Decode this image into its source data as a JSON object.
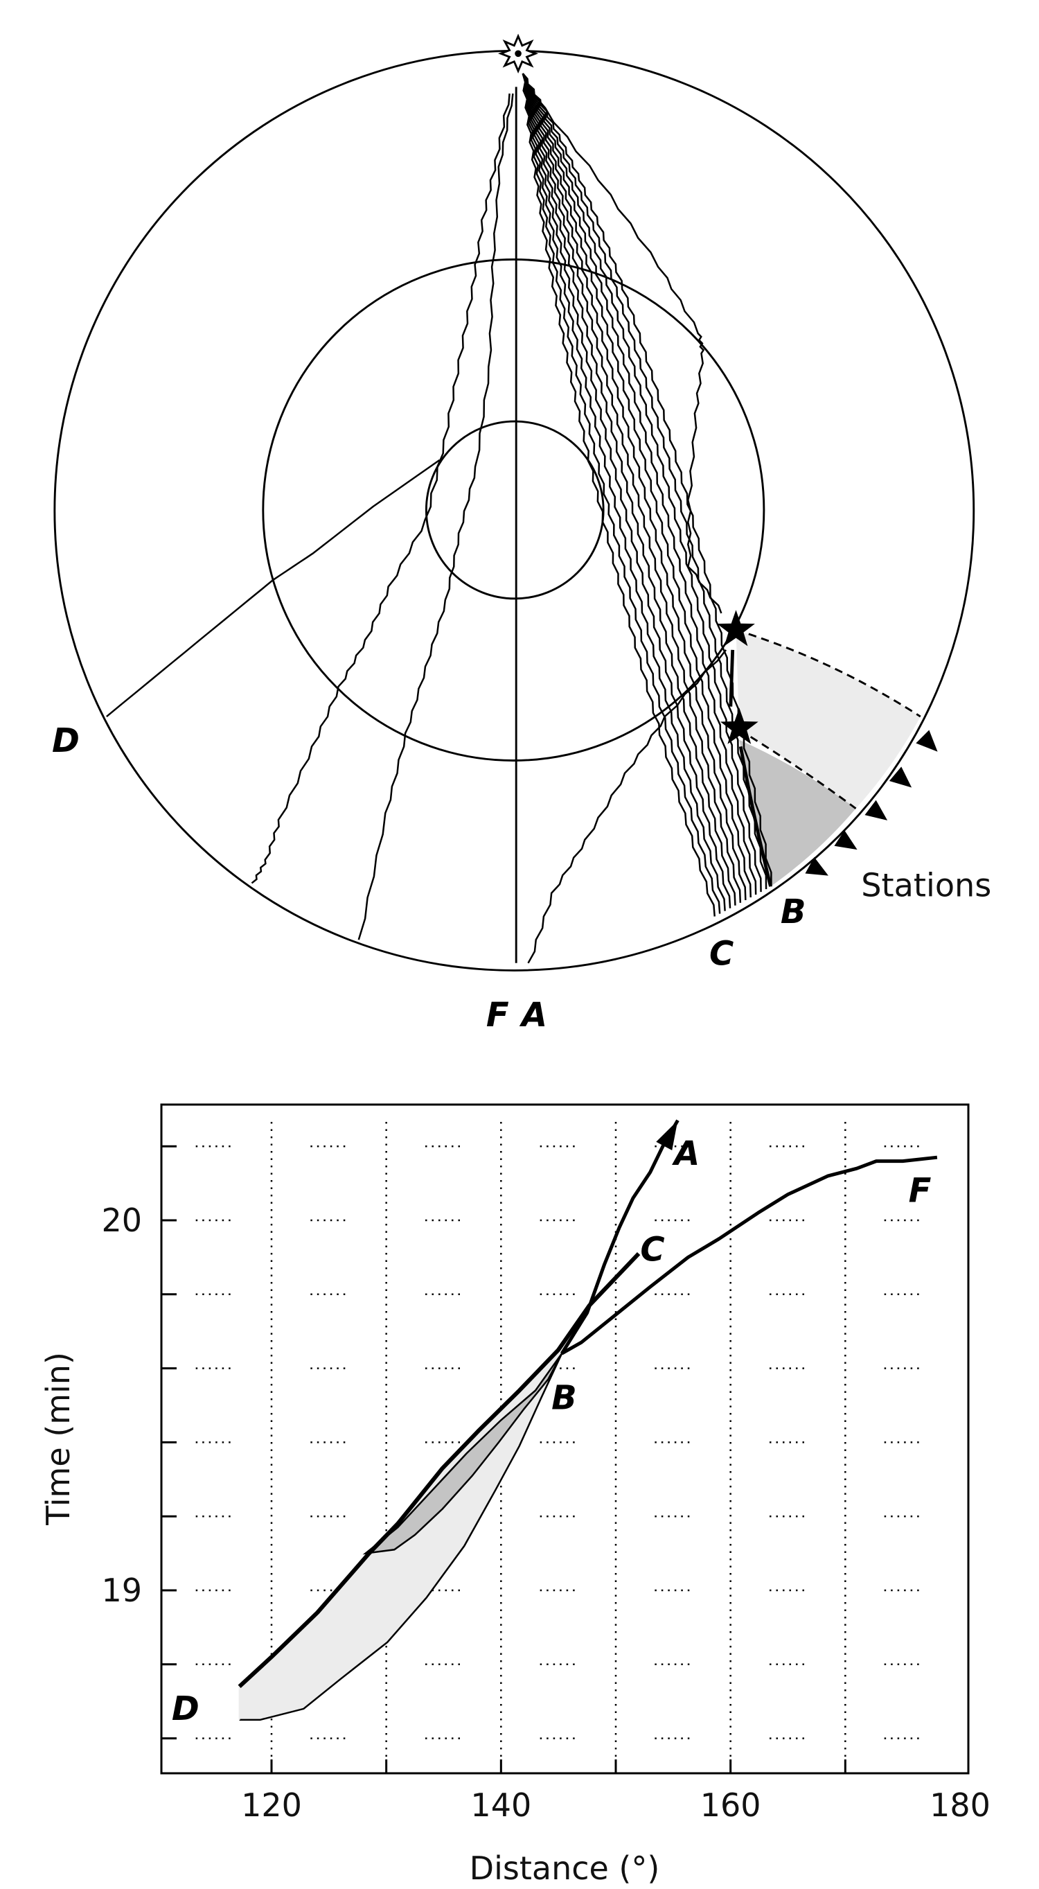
{
  "diagram": {
    "labels": {
      "D": "D",
      "F": "F",
      "A": "A",
      "C": "C",
      "B": "B",
      "stations": "Stations"
    },
    "colors": {
      "light_shade": "#ececec",
      "dark_shade": "#c4c4c4",
      "line": "#000000"
    }
  },
  "chart_data": {
    "type": "line",
    "xlabel": "Distance (°)",
    "ylabel": "Time (min)",
    "xlim": [
      110.4,
      180.4
    ],
    "ylim": [
      18.5,
      20.31
    ],
    "xticks": [
      120,
      140,
      160,
      180
    ],
    "xminor": [
      120,
      130,
      140,
      150,
      160,
      170
    ],
    "yticks": [
      19,
      20
    ],
    "yminor": [
      18.6,
      18.8,
      19.0,
      19.2,
      19.4,
      19.6,
      19.8,
      20.0,
      20.2
    ],
    "grid": "dotted",
    "series": [
      {
        "name": "C",
        "points": [
          [
            117.2,
            18.74
          ],
          [
            120,
            18.82
          ],
          [
            124,
            18.94
          ],
          [
            128.5,
            19.1
          ],
          [
            131,
            19.18
          ],
          [
            134.9,
            19.33
          ],
          [
            138,
            19.43
          ],
          [
            141.6,
            19.54
          ],
          [
            145,
            19.65
          ],
          [
            147.7,
            19.77
          ],
          [
            152,
            19.91
          ]
        ]
      },
      {
        "name": "F",
        "points": [
          [
            145.3,
            19.64
          ],
          [
            147,
            19.67
          ],
          [
            150.2,
            19.75
          ],
          [
            153,
            19.82
          ],
          [
            156.3,
            19.9
          ],
          [
            159,
            19.95
          ],
          [
            162.4,
            20.02
          ],
          [
            165,
            20.07
          ],
          [
            168.5,
            20.12
          ],
          [
            171,
            20.14
          ],
          [
            172.7,
            20.16
          ],
          [
            175,
            20.16
          ],
          [
            178,
            20.17
          ]
        ]
      },
      {
        "name": "A",
        "points": [
          [
            145.3,
            19.64
          ],
          [
            147.5,
            19.75
          ],
          [
            149,
            19.88
          ],
          [
            150.3,
            19.98
          ],
          [
            151.5,
            20.06
          ],
          [
            153,
            20.13
          ],
          [
            154.1,
            20.2
          ],
          [
            155.4,
            20.27
          ]
        ]
      }
    ],
    "regions": [
      {
        "shade": "light",
        "lower": [
          [
            117.2,
            18.65
          ],
          [
            119,
            18.65
          ],
          [
            122.8,
            18.68
          ],
          [
            126,
            18.76
          ],
          [
            130.1,
            18.86
          ],
          [
            133.5,
            18.98
          ],
          [
            136.8,
            19.12
          ],
          [
            139.5,
            19.27
          ],
          [
            141.6,
            19.39
          ],
          [
            143.5,
            19.52
          ],
          [
            145.3,
            19.64
          ]
        ]
      },
      {
        "shade": "dark",
        "upper": [
          [
            128.2,
            19.1
          ],
          [
            131,
            19.17
          ],
          [
            134,
            19.27
          ],
          [
            137,
            19.37
          ],
          [
            140,
            19.46
          ],
          [
            143,
            19.54
          ],
          [
            145.3,
            19.64
          ]
        ],
        "lower": [
          [
            128.2,
            19.1
          ],
          [
            130.7,
            19.11
          ],
          [
            132.5,
            19.15
          ],
          [
            134.9,
            19.22
          ],
          [
            137.5,
            19.31
          ],
          [
            139.8,
            19.4
          ],
          [
            142,
            19.49
          ],
          [
            144.1,
            19.57
          ],
          [
            145.3,
            19.64
          ]
        ]
      }
    ],
    "labels": [
      {
        "text": "A",
        "x": 156.2,
        "y": 20.18
      },
      {
        "text": "C",
        "x": 153.2,
        "y": 19.92
      },
      {
        "text": "B",
        "x": 145.5,
        "y": 19.52
      },
      {
        "text": "D",
        "x": 112.5,
        "y": 18.68
      },
      {
        "text": "F",
        "x": 176.5,
        "y": 20.08
      }
    ],
    "colors": {
      "light": "#ececec",
      "dark": "#c4c4c4"
    }
  }
}
